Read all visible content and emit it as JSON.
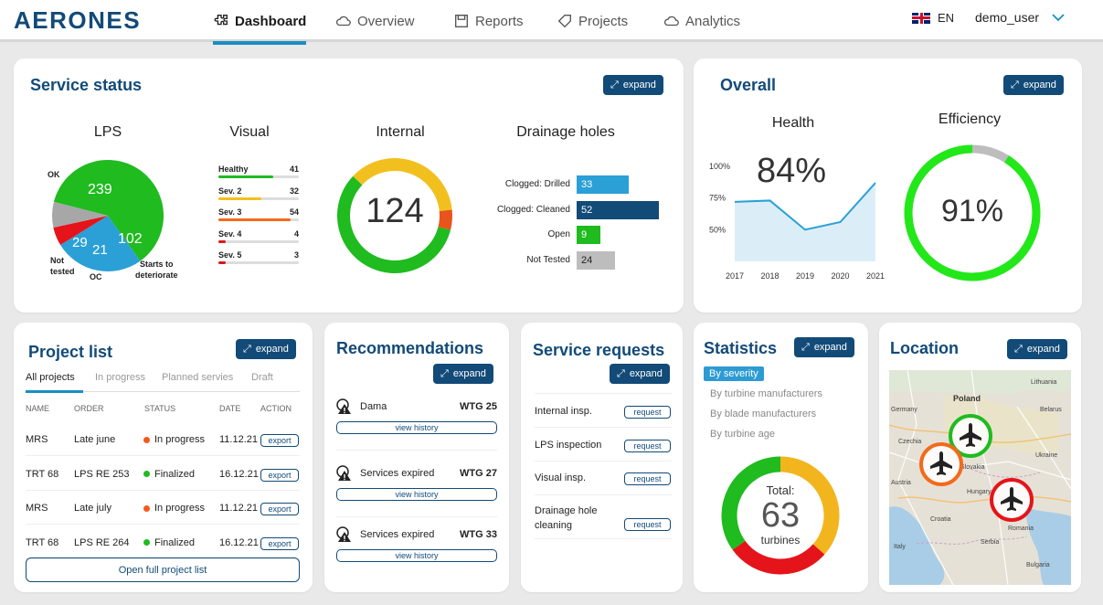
{
  "app": {
    "logo": "AERONES"
  },
  "nav": {
    "items": [
      {
        "label": "Dashboard",
        "icon": "puzzle-icon",
        "active": true
      },
      {
        "label": "Overview",
        "icon": "cloud-icon"
      },
      {
        "label": "Reports",
        "icon": "save-icon"
      },
      {
        "label": "Projects",
        "icon": "tag-icon"
      },
      {
        "label": "Analytics",
        "icon": "cloud-icon"
      }
    ],
    "language": "EN",
    "user": "demo_user"
  },
  "expand_label": "expand",
  "service_status": {
    "title": "Service status",
    "lps": {
      "title": "LPS",
      "chart_data": {
        "type": "pie",
        "slices": [
          {
            "label": "OK",
            "value": 239,
            "color": "#1fbb1f"
          },
          {
            "label": "Starts to deteriorate",
            "value": 102,
            "color": "#2aa0d6"
          },
          {
            "label": "OC",
            "value": 21,
            "color": "#e5141b"
          },
          {
            "label": "Not tested",
            "value": 29,
            "color": "#a7a7a7"
          }
        ]
      },
      "labels": {
        "ok": "OK",
        "not_tested_1": "Not",
        "not_tested_2": "tested",
        "oc": "OC",
        "std_1": "Starts to",
        "std_2": "deteriorate"
      },
      "values": {
        "ok": "239",
        "std": "102",
        "oc": "21",
        "nt": "29"
      }
    },
    "visual": {
      "title": "Visual",
      "chart_data": {
        "type": "bar",
        "categories": [
          "Healthy",
          "Sev. 2",
          "Sev. 3",
          "Sev. 4",
          "Sev. 5"
        ],
        "values": [
          41,
          32,
          54,
          4,
          3
        ],
        "colors": [
          "#1fbb1f",
          "#f2c01e",
          "#f26a1b",
          "#d61a1a",
          "#d61a1a"
        ]
      },
      "rows": [
        {
          "label": "Healthy",
          "value": "41"
        },
        {
          "label": "Sev. 2",
          "value": "32"
        },
        {
          "label": "Sev. 3",
          "value": "54"
        },
        {
          "label": "Sev. 4",
          "value": "4"
        },
        {
          "label": "Sev. 5",
          "value": "3"
        }
      ]
    },
    "internal": {
      "title": "Internal",
      "total": "124",
      "chart_data": {
        "type": "pie",
        "slices": [
          {
            "value": 72,
            "color": "#1fbb1f"
          },
          {
            "value": 45,
            "color": "#f2c01e"
          },
          {
            "value": 7,
            "color": "#e8541b"
          }
        ]
      }
    },
    "drainage": {
      "title": "Drainage holes",
      "chart_data": {
        "type": "bar",
        "categories": [
          "Clogged: Drilled",
          "Clogged: Cleaned",
          "Open",
          "Not Tested"
        ],
        "values": [
          33,
          52,
          9,
          24
        ],
        "colors": [
          "#2aa0d6",
          "#124a78",
          "#1fbb1f",
          "#bdbdbd"
        ]
      },
      "rows": [
        {
          "label": "Clogged: Drilled",
          "value": "33"
        },
        {
          "label": "Clogged: Cleaned",
          "value": "52"
        },
        {
          "label": "Open",
          "value": "9"
        },
        {
          "label": "Not Tested",
          "value": "24"
        }
      ]
    }
  },
  "overall": {
    "title": "Overall",
    "health": {
      "title": "Health",
      "value": "84%",
      "chart_data": {
        "type": "area",
        "x": [
          "2017",
          "2018",
          "2019",
          "2020",
          "2021"
        ],
        "values": [
          72,
          73,
          50,
          56,
          87
        ],
        "yticks": [
          "100%",
          "75%",
          "50%"
        ],
        "ylim": [
          25,
          100
        ]
      }
    },
    "efficiency": {
      "title": "Efficiency",
      "value": "91%",
      "percent": 91
    }
  },
  "project_list": {
    "title": "Project list",
    "tabs": [
      "All projects",
      "In progress",
      "Planned servies",
      "Draft"
    ],
    "columns": [
      "NAME",
      "ORDER",
      "STATUS",
      "DATE",
      "ACTION"
    ],
    "rows": [
      {
        "name": "MRS",
        "order": "Late june",
        "status": "In progress",
        "status_color": "#f25a1b",
        "date": "11.12.21",
        "action": "export"
      },
      {
        "name": "TRT 68",
        "order": "LPS RE 253",
        "status": "Finalized",
        "status_color": "#1fbb1f",
        "date": "16.12.21",
        "action": "export"
      },
      {
        "name": "MRS",
        "order": "Late july",
        "status": "In progress",
        "status_color": "#f25a1b",
        "date": "11.12.21",
        "action": "export"
      },
      {
        "name": "TRT 68",
        "order": "LPS RE 264",
        "status": "Finalized",
        "status_color": "#1fbb1f",
        "date": "16.12.21",
        "action": "export"
      }
    ],
    "open_full": "Open full project list"
  },
  "recommendations": {
    "title": "Recommendations",
    "items": [
      {
        "text": "Dama",
        "wtg": "WTG 25",
        "button": "view history"
      },
      {
        "text": "Services expired",
        "wtg": "WTG 27",
        "button": "view history"
      },
      {
        "text": "Services expired",
        "wtg": "WTG 33",
        "button": "view history"
      }
    ]
  },
  "service_requests": {
    "title": "Service requests",
    "items": [
      {
        "text": "Internal insp.",
        "button": "request"
      },
      {
        "text": "LPS inspection",
        "button": "request"
      },
      {
        "text": "Visual insp.",
        "button": "request"
      },
      {
        "text_1": "Drainage hole",
        "text_2": "cleaning",
        "button": "request"
      }
    ]
  },
  "statistics": {
    "title": "Statistics",
    "options": [
      "By severity",
      "By turbine manufacturers",
      "By blade manufacturers",
      "By turbine age"
    ],
    "total_label": "Total:",
    "total_value": "63",
    "total_unit": "turbines",
    "chart_data": {
      "type": "pie",
      "slices": [
        {
          "value": 23,
          "color": "#f2b51e"
        },
        {
          "value": 18,
          "color": "#e5141b"
        },
        {
          "value": 22,
          "color": "#1fbb1f"
        }
      ]
    }
  },
  "location": {
    "title": "Location",
    "labels": {
      "poland": "Poland",
      "slovakia": "Slovakia",
      "hungary": "Hungary",
      "romania": "Romania",
      "austria": "Austria",
      "italy": "Italy",
      "croatia": "Croatia",
      "bulgaria": "Bulgaria",
      "lithuania": "Lithuania",
      "belarus": "Belarus",
      "ukraine": "Ukraine",
      "czechia": "Czechia",
      "serbia": "Serbia",
      "germany": "Germany"
    },
    "markers": [
      {
        "status": "ok",
        "color": "#1fbb1f"
      },
      {
        "status": "warning",
        "color": "#f26a1b"
      },
      {
        "status": "critical",
        "color": "#e5141b"
      }
    ]
  }
}
